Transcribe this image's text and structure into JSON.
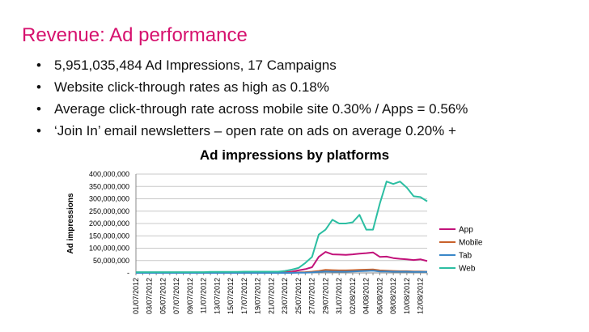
{
  "slide": {
    "title": "Revenue: Ad performance",
    "bullets": [
      "5,951,035,484  Ad Impressions, 17 Campaigns",
      "Website click-through rates as high as 0.18%",
      "Average click-through rate across mobile site  0.30% / Apps = 0.56%",
      "‘Join In’ email newsletters – open rate on ads on average 0.20% +"
    ],
    "bullet_symbol": "•"
  },
  "chart_data": {
    "type": "line",
    "title": "Ad impressions by platforms",
    "xlabel": "",
    "ylabel": "Ad impressions",
    "ylim": [
      0,
      400000000
    ],
    "y_ticks": [
      {
        "value": 0,
        "label": "-"
      },
      {
        "value": 50000000,
        "label": "50,000,000"
      },
      {
        "value": 100000000,
        "label": "100,000,000"
      },
      {
        "value": 150000000,
        "label": "150,000,000"
      },
      {
        "value": 200000000,
        "label": "200,000,000"
      },
      {
        "value": 250000000,
        "label": "250,000,000"
      },
      {
        "value": 300000000,
        "label": "300,000,000"
      },
      {
        "value": 350000000,
        "label": "350,000,000"
      },
      {
        "value": 400000000,
        "label": "400,000,000"
      }
    ],
    "grid": true,
    "legend_position": "right",
    "x": [
      "01/07/2012",
      "02/07/2012",
      "03/07/2012",
      "04/07/2012",
      "05/07/2012",
      "06/07/2012",
      "07/07/2012",
      "08/07/2012",
      "09/07/2012",
      "10/07/2012",
      "11/07/2012",
      "12/07/2012",
      "13/07/2012",
      "14/07/2012",
      "15/07/2012",
      "16/07/2012",
      "17/07/2012",
      "18/07/2012",
      "19/07/2012",
      "20/07/2012",
      "21/07/2012",
      "22/07/2012",
      "23/07/2012",
      "24/07/2012",
      "25/07/2012",
      "26/07/2012",
      "27/07/2012",
      "28/07/2012",
      "29/07/2012",
      "30/07/2012",
      "31/07/2012",
      "01/08/2012",
      "02/08/2012",
      "03/08/2012",
      "04/08/2012",
      "05/08/2012",
      "06/08/2012",
      "07/08/2012",
      "08/08/2012",
      "09/08/2012",
      "10/08/2012",
      "11/08/2012",
      "12/08/2012",
      "13/08/2012"
    ],
    "x_tick_labels": [
      "01/07/2012",
      "03/07/2012",
      "05/07/2012",
      "07/07/2012",
      "09/07/2012",
      "11/07/2012",
      "13/07/2012",
      "15/07/2012",
      "17/07/2012",
      "19/07/2012",
      "21/07/2012",
      "23/07/2012",
      "25/07/2012",
      "27/07/2012",
      "29/07/2012",
      "31/07/2012",
      "02/08/2012",
      "04/08/2012",
      "06/08/2012",
      "08/08/2012",
      "10/08/2012",
      "12/08/2012"
    ],
    "series": [
      {
        "name": "App",
        "color": "#c2127a",
        "values": [
          2000000,
          2000000,
          2000000,
          2000000,
          2000000,
          2000000,
          2000000,
          2000000,
          2000000,
          2000000,
          2000000,
          2000000,
          2000000,
          2000000,
          2000000,
          2000000,
          2000000,
          2000000,
          2000000,
          2000000,
          2000000,
          2000000,
          3000000,
          5000000,
          10000000,
          15000000,
          23000000,
          65000000,
          85000000,
          75000000,
          74000000,
          73000000,
          75000000,
          78000000,
          80000000,
          83000000,
          65000000,
          66000000,
          60000000,
          57000000,
          55000000,
          52000000,
          55000000,
          48000000
        ]
      },
      {
        "name": "Mobile",
        "color": "#c8612b",
        "values": [
          1000000,
          1000000,
          1000000,
          1000000,
          1000000,
          1000000,
          1000000,
          1000000,
          1000000,
          1000000,
          1000000,
          1000000,
          1000000,
          1000000,
          1000000,
          1000000,
          1000000,
          1000000,
          1000000,
          1000000,
          1000000,
          1000000,
          1000000,
          1000000,
          2000000,
          3000000,
          5000000,
          8000000,
          12000000,
          11000000,
          10000000,
          10000000,
          11000000,
          12000000,
          13000000,
          14000000,
          10000000,
          9000000,
          8000000,
          7000000,
          7000000,
          6000000,
          6000000,
          5000000
        ]
      },
      {
        "name": "Tab",
        "color": "#3a87c8",
        "values": [
          0,
          0,
          0,
          0,
          0,
          0,
          0,
          0,
          0,
          0,
          0,
          0,
          0,
          0,
          0,
          0,
          0,
          0,
          0,
          0,
          0,
          0,
          0,
          0,
          1000000,
          1000000,
          2000000,
          4000000,
          6000000,
          5000000,
          5000000,
          5000000,
          6000000,
          7000000,
          8000000,
          9000000,
          6000000,
          6000000,
          5000000,
          5000000,
          5000000,
          4000000,
          4000000,
          4000000
        ]
      },
      {
        "name": "Web",
        "color": "#2cbea2",
        "values": [
          3000000,
          3000000,
          3000000,
          3000000,
          3000000,
          3000000,
          3000000,
          3000000,
          3000000,
          3000000,
          3000000,
          4000000,
          4000000,
          4000000,
          4000000,
          4000000,
          5000000,
          5000000,
          5000000,
          5000000,
          5000000,
          5000000,
          8000000,
          13000000,
          20000000,
          40000000,
          65000000,
          155000000,
          175000000,
          215000000,
          200000000,
          200000000,
          205000000,
          235000000,
          175000000,
          175000000,
          280000000,
          370000000,
          360000000,
          370000000,
          345000000,
          310000000,
          307000000,
          290000000
        ]
      }
    ]
  }
}
